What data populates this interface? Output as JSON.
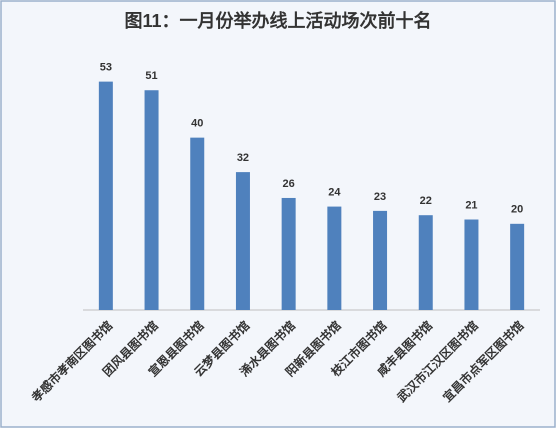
{
  "chart_data": {
    "type": "bar",
    "title": "图11：一月份举办线上活动场次前十名",
    "categories": [
      "孝感市孝南区图书馆",
      "团风县图书馆",
      "宣恩县图书馆",
      "云梦县图书馆",
      "浠水县图书馆",
      "阳新县图书馆",
      "枝江市图书馆",
      "咸丰县图书馆",
      "武汉市江汉区图书馆",
      "宜昌市点军区图书馆"
    ],
    "values": [
      53,
      51,
      40,
      32,
      26,
      24,
      23,
      22,
      21,
      20
    ],
    "color": "#4f81bd",
    "ylim": [
      0,
      55
    ]
  }
}
